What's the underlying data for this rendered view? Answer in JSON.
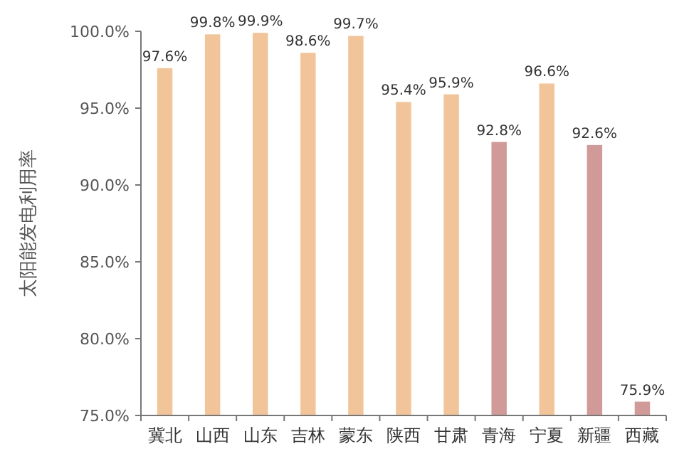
{
  "chart_data": {
    "type": "bar",
    "ylabel": "太阳能发电利用率",
    "categories": [
      "冀北",
      "山西",
      "山东",
      "吉林",
      "蒙东",
      "陕西",
      "甘肃",
      "青海",
      "宁夏",
      "新疆",
      "西藏"
    ],
    "values": [
      97.6,
      99.8,
      99.9,
      98.6,
      99.7,
      95.4,
      95.9,
      92.8,
      96.6,
      92.6,
      75.9
    ],
    "colors": [
      "#f2c49a",
      "#f2c49a",
      "#f2c49a",
      "#f2c49a",
      "#f2c49a",
      "#f2c49a",
      "#f2c49a",
      "#d09a98",
      "#f2c49a",
      "#d09a98",
      "#d09a98"
    ],
    "value_labels": [
      "97.6%",
      "99.8%",
      "99.9%",
      "98.6%",
      "99.7%",
      "95.4%",
      "95.9%",
      "92.8%",
      "96.6%",
      "92.6%",
      "75.9%"
    ],
    "ylim": [
      75,
      100
    ],
    "yticks": [
      {
        "value": 75,
        "label": "75.0%"
      },
      {
        "value": 80,
        "label": "80.0%"
      },
      {
        "value": 85,
        "label": "85.0%"
      },
      {
        "value": 90,
        "label": "90.0%"
      },
      {
        "value": 95,
        "label": "95.0%"
      },
      {
        "value": 100,
        "label": "100.0%"
      }
    ],
    "grid": false
  }
}
